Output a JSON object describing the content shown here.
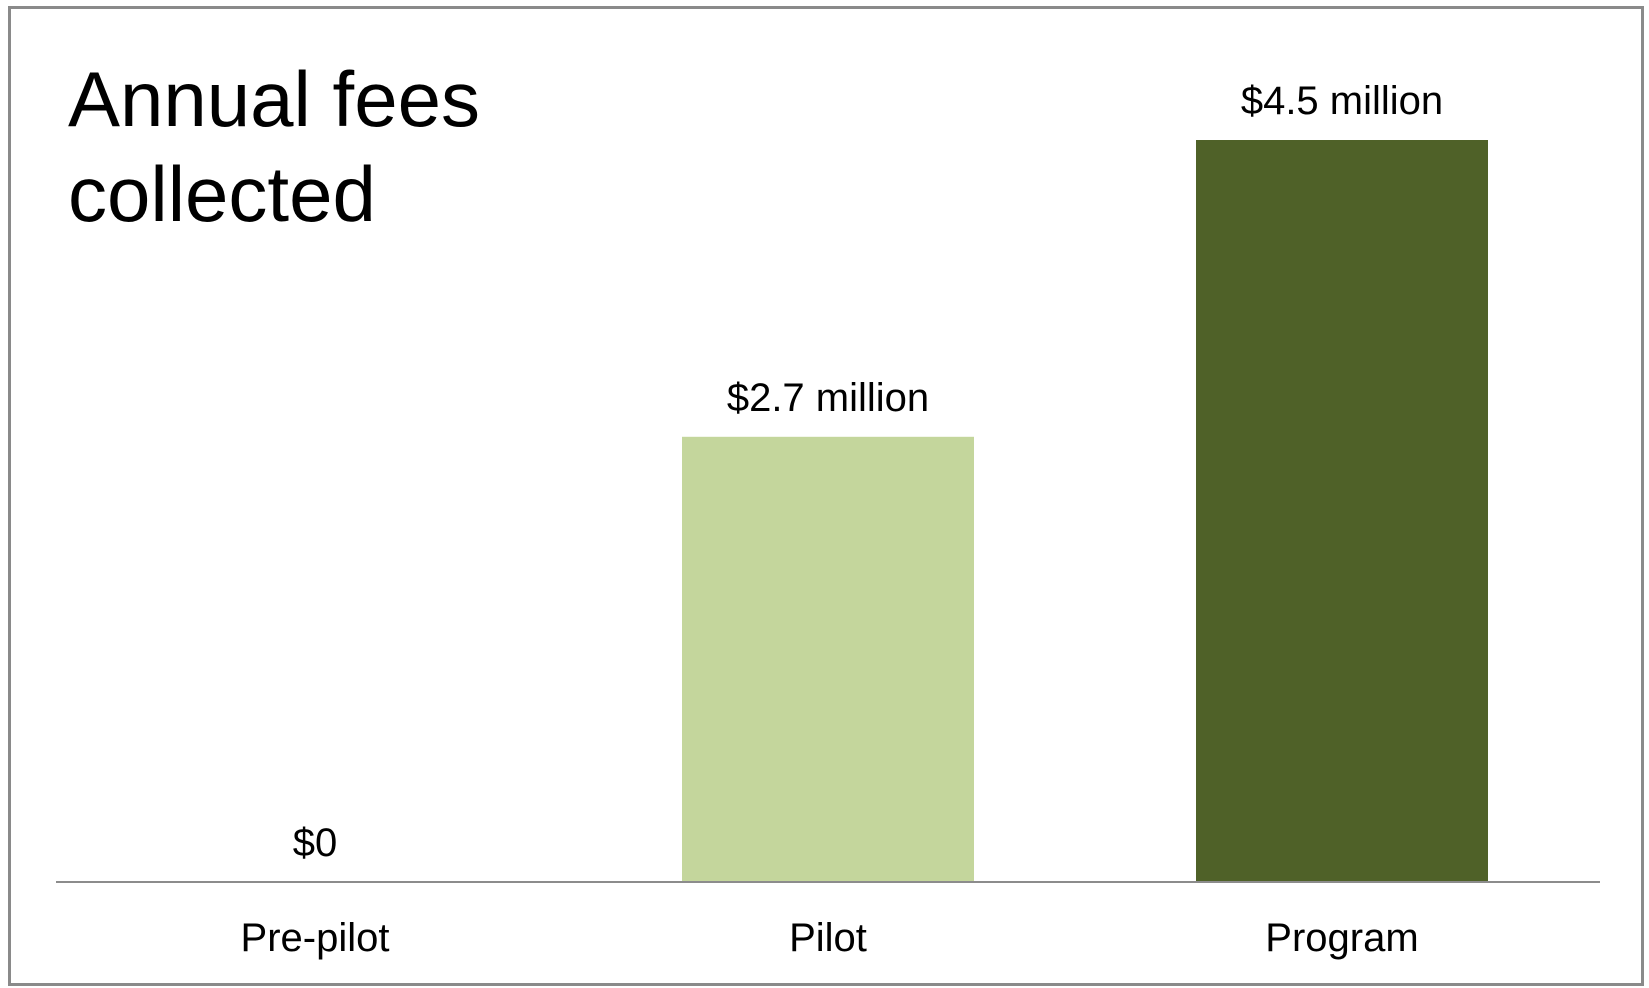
{
  "chart_data": {
    "type": "bar",
    "title": "Annual fees\ncollected",
    "categories": [
      "Pre-pilot",
      "Pilot",
      "Program"
    ],
    "values": [
      0,
      2.7,
      4.5
    ],
    "value_unit": "$ million",
    "data_labels": [
      "$0",
      "$2.7 million",
      "$4.5 million"
    ],
    "bar_colors": [
      "#ffffff",
      "#c4d69c",
      "#4f6128"
    ],
    "ylim": [
      0,
      4.5
    ],
    "xlabel": "",
    "ylabel": "",
    "grid": false,
    "legend": "none"
  }
}
